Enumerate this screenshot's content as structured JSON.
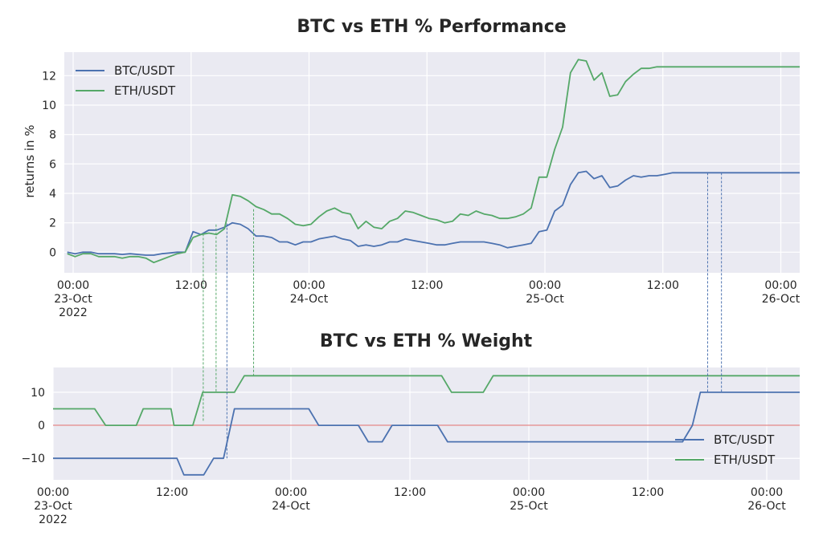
{
  "chart_data": [
    {
      "type": "line",
      "title": "BTC vs ETH % Performance",
      "xlabel": "",
      "ylabel": "returns in %",
      "ylim": [
        -1.4,
        13.6
      ],
      "yticks": [
        0,
        2,
        4,
        6,
        8,
        10,
        12
      ],
      "xrange_hours": [
        -0.6,
        77.5
      ],
      "xticks": [
        {
          "h": 0,
          "label": "00:00\n23-Oct\n2022"
        },
        {
          "h": 12,
          "label": "12:00"
        },
        {
          "h": 24,
          "label": "00:00\n24-Oct"
        },
        {
          "h": 36,
          "label": "12:00"
        },
        {
          "h": 48,
          "label": "00:00\n25-Oct"
        },
        {
          "h": 60,
          "label": "12:00"
        },
        {
          "h": 72,
          "label": "00:00\n26-Oct"
        }
      ],
      "grid": true,
      "legend": "upper-left",
      "colors": {
        "BTC/USDT": "#4c72b0",
        "ETH/USDT": "#55a868",
        "bg": "#eaeaf2"
      },
      "x_hours": [
        -0.6,
        0.2,
        1.0,
        1.8,
        2.6,
        3.4,
        4.2,
        5.0,
        5.8,
        6.6,
        7.4,
        8.2,
        9.0,
        9.8,
        10.6,
        11.4,
        12.2,
        13.0,
        13.8,
        14.6,
        15.4,
        16.2,
        17.0,
        17.8,
        18.6,
        19.4,
        20.2,
        21.0,
        21.8,
        22.6,
        23.4,
        24.2,
        25.0,
        25.8,
        26.6,
        27.4,
        28.2,
        29.0,
        29.8,
        30.6,
        31.4,
        32.2,
        33.0,
        33.8,
        34.6,
        35.4,
        36.2,
        37.0,
        37.8,
        38.6,
        39.4,
        40.2,
        41.0,
        41.8,
        42.6,
        43.4,
        44.2,
        45.0,
        45.8,
        46.6,
        47.4,
        48.2,
        49.0,
        49.8,
        50.6,
        51.4,
        52.2,
        53.0,
        53.8,
        54.6,
        55.4,
        56.2,
        57.0,
        57.8,
        58.6,
        59.4,
        60.2,
        61.0,
        61.8,
        62.6,
        63.4,
        64.2,
        65.0,
        65.8,
        66.6,
        67.4,
        68.2,
        69.0,
        69.8,
        70.6,
        71.4,
        72.2,
        73.0,
        73.8,
        74.6,
        75.4,
        76.2,
        77.0,
        77.5
      ],
      "series": [
        {
          "name": "BTC/USDT",
          "values": [
            0,
            -0.1,
            0,
            0,
            -0.1,
            -0.1,
            -0.1,
            -0.15,
            -0.1,
            -0.15,
            -0.2,
            -0.2,
            -0.1,
            -0.05,
            0,
            0,
            1.4,
            1.2,
            1.5,
            1.5,
            1.7,
            2.0,
            1.9,
            1.6,
            1.1,
            1.1,
            1.0,
            0.7,
            0.7,
            0.5,
            0.7,
            0.7,
            0.9,
            1.0,
            1.1,
            0.9,
            0.8,
            0.4,
            0.5,
            0.4,
            0.5,
            0.7,
            0.7,
            0.9,
            0.8,
            0.7,
            0.6,
            0.5,
            0.5,
            0.6,
            0.7,
            0.7,
            0.7,
            0.7,
            0.6,
            0.5,
            0.3,
            0.4,
            0.5,
            0.6,
            1.4,
            1.5,
            2.8,
            3.2,
            4.6,
            5.4,
            5.5,
            5.0,
            5.2,
            4.4,
            4.5,
            4.9,
            5.2,
            5.1,
            5.2,
            5.2,
            5.3,
            5.4,
            5.4,
            5.4,
            5.4,
            5.4,
            5.4,
            5.4,
            5.4,
            5.4,
            5.4,
            5.4,
            5.4,
            5.4,
            5.4,
            5.4,
            5.4,
            5.4,
            5.4,
            5.4,
            5.4,
            5.4,
            5.4
          ]
        },
        {
          "name": "ETH/USDT",
          "values": [
            -0.1,
            -0.3,
            -0.1,
            -0.1,
            -0.3,
            -0.3,
            -0.3,
            -0.4,
            -0.3,
            -0.3,
            -0.4,
            -0.7,
            -0.5,
            -0.3,
            -0.1,
            0,
            1.0,
            1.2,
            1.3,
            1.2,
            1.6,
            3.9,
            3.8,
            3.5,
            3.1,
            2.9,
            2.6,
            2.6,
            2.3,
            1.9,
            1.8,
            1.9,
            2.4,
            2.8,
            3.0,
            2.7,
            2.6,
            1.6,
            2.1,
            1.7,
            1.6,
            2.1,
            2.3,
            2.8,
            2.7,
            2.5,
            2.3,
            2.2,
            2.0,
            2.1,
            2.6,
            2.5,
            2.8,
            2.6,
            2.5,
            2.3,
            2.3,
            2.4,
            2.6,
            3.0,
            5.1,
            5.1,
            7.0,
            8.5,
            12.2,
            13.1,
            13.0,
            11.7,
            12.2,
            10.6,
            10.7,
            11.6,
            12.1,
            12.5,
            12.5,
            12.6,
            12.6,
            12.6,
            12.6,
            12.6,
            12.6,
            12.6,
            12.6,
            12.6,
            12.6,
            12.6,
            12.6,
            12.6,
            12.6,
            12.6,
            12.6,
            12.6,
            12.6,
            12.6,
            12.6,
            12.6,
            12.6,
            12.6,
            12.6
          ]
        }
      ]
    },
    {
      "type": "line",
      "title": "BTC vs ETH % Weight",
      "xlabel": "",
      "ylabel": "",
      "ylim": [
        -16.5,
        17.5
      ],
      "yticks": [
        -10,
        0,
        10
      ],
      "xrange_hours": [
        0,
        77.5
      ],
      "xticks": [
        {
          "h": 0,
          "label": "00:00\n23-Oct\n2022"
        },
        {
          "h": 12,
          "label": "12:00"
        },
        {
          "h": 24,
          "label": "00:00\n24-Oct"
        },
        {
          "h": 36,
          "label": "12:00"
        },
        {
          "h": 48,
          "label": "00:00\n25-Oct"
        },
        {
          "h": 60,
          "label": "12:00"
        },
        {
          "h": 72,
          "label": "00:00\n26-Oct"
        }
      ],
      "grid": true,
      "legend": "lower-right",
      "zero_line": {
        "y": 0,
        "color": "#e06c6c"
      },
      "colors": {
        "BTC/USDT": "#4c72b0",
        "ETH/USDT": "#55a868",
        "bg": "#eaeaf2"
      },
      "series": [
        {
          "name": "BTC/USDT",
          "x_hours": [
            0,
            12.5,
            13.2,
            15.2,
            16.2,
            17.2,
            18.3,
            25.8,
            26.8,
            30.8,
            31.8,
            33.2,
            34.2,
            38.8,
            39.8,
            63.5,
            64.5,
            65.3,
            78
          ],
          "values": [
            -10,
            -10,
            -15,
            -15,
            -10,
            -10,
            5,
            5,
            0,
            0,
            -5,
            -5,
            0,
            0,
            -5,
            -5,
            0,
            10,
            10
          ]
        },
        {
          "name": "ETH/USDT",
          "x_hours": [
            0,
            4.2,
            5.3,
            8.4,
            9.1,
            11.9,
            12.2,
            14.1,
            15.1,
            18.3,
            19.3,
            39.2,
            40.2,
            43.4,
            44.4,
            78
          ],
          "values": [
            5,
            5,
            0,
            0,
            5,
            5,
            0,
            0,
            10,
            10,
            15,
            15,
            10,
            10,
            15,
            15
          ]
        }
      ],
      "connector_lines": [
        {
          "color": "#55a868",
          "x_hours": [
            14.2,
            15.5,
            19.3
          ]
        },
        {
          "color": "#4c72b0",
          "x_hours": [
            16.6,
            65.3,
            66.7
          ]
        }
      ]
    }
  ]
}
